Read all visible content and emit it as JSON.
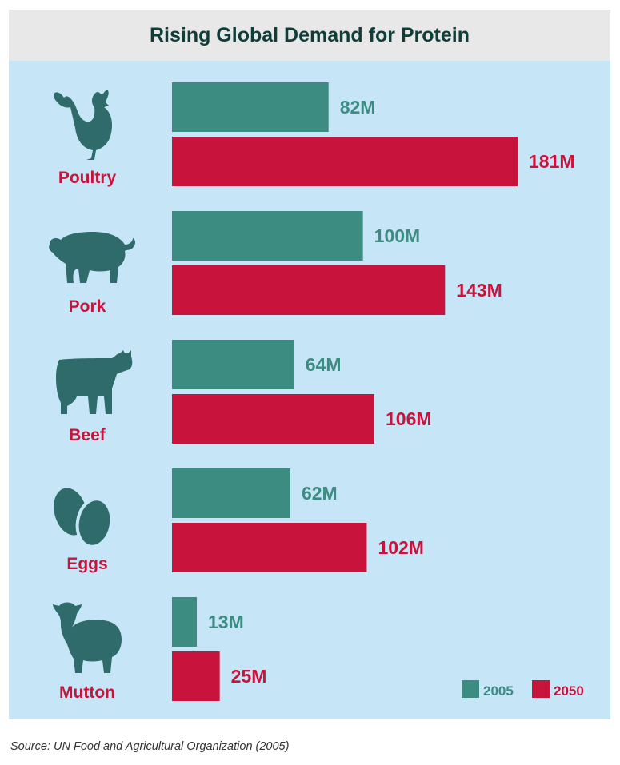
{
  "chart_data": {
    "type": "bar",
    "orientation": "horizontal",
    "title": "Rising Global Demand for Protein",
    "categories": [
      "Poultry",
      "Pork",
      "Beef",
      "Eggs",
      "Mutton"
    ],
    "icons": [
      "chicken-icon",
      "pig-icon",
      "cow-icon",
      "eggs-icon",
      "sheep-icon"
    ],
    "series": [
      {
        "name": "2005",
        "values": [
          82,
          100,
          64,
          62,
          13
        ],
        "labels": [
          "82M",
          "100M",
          "64M",
          "62M",
          "13M"
        ],
        "color": "#3d8c82"
      },
      {
        "name": "2050",
        "values": [
          181,
          143,
          106,
          102,
          25
        ],
        "labels": [
          "181M",
          "143M",
          "106M",
          "102M",
          "25M"
        ],
        "color": "#c8143c"
      }
    ],
    "xlim": [
      0,
      181
    ],
    "grid": false,
    "legend_position": "bottom-right",
    "category_label_color": "#c8143c",
    "icon_color": "#2e6b6a"
  },
  "source": "Source: UN Food and Agricultural Organization (2005)"
}
